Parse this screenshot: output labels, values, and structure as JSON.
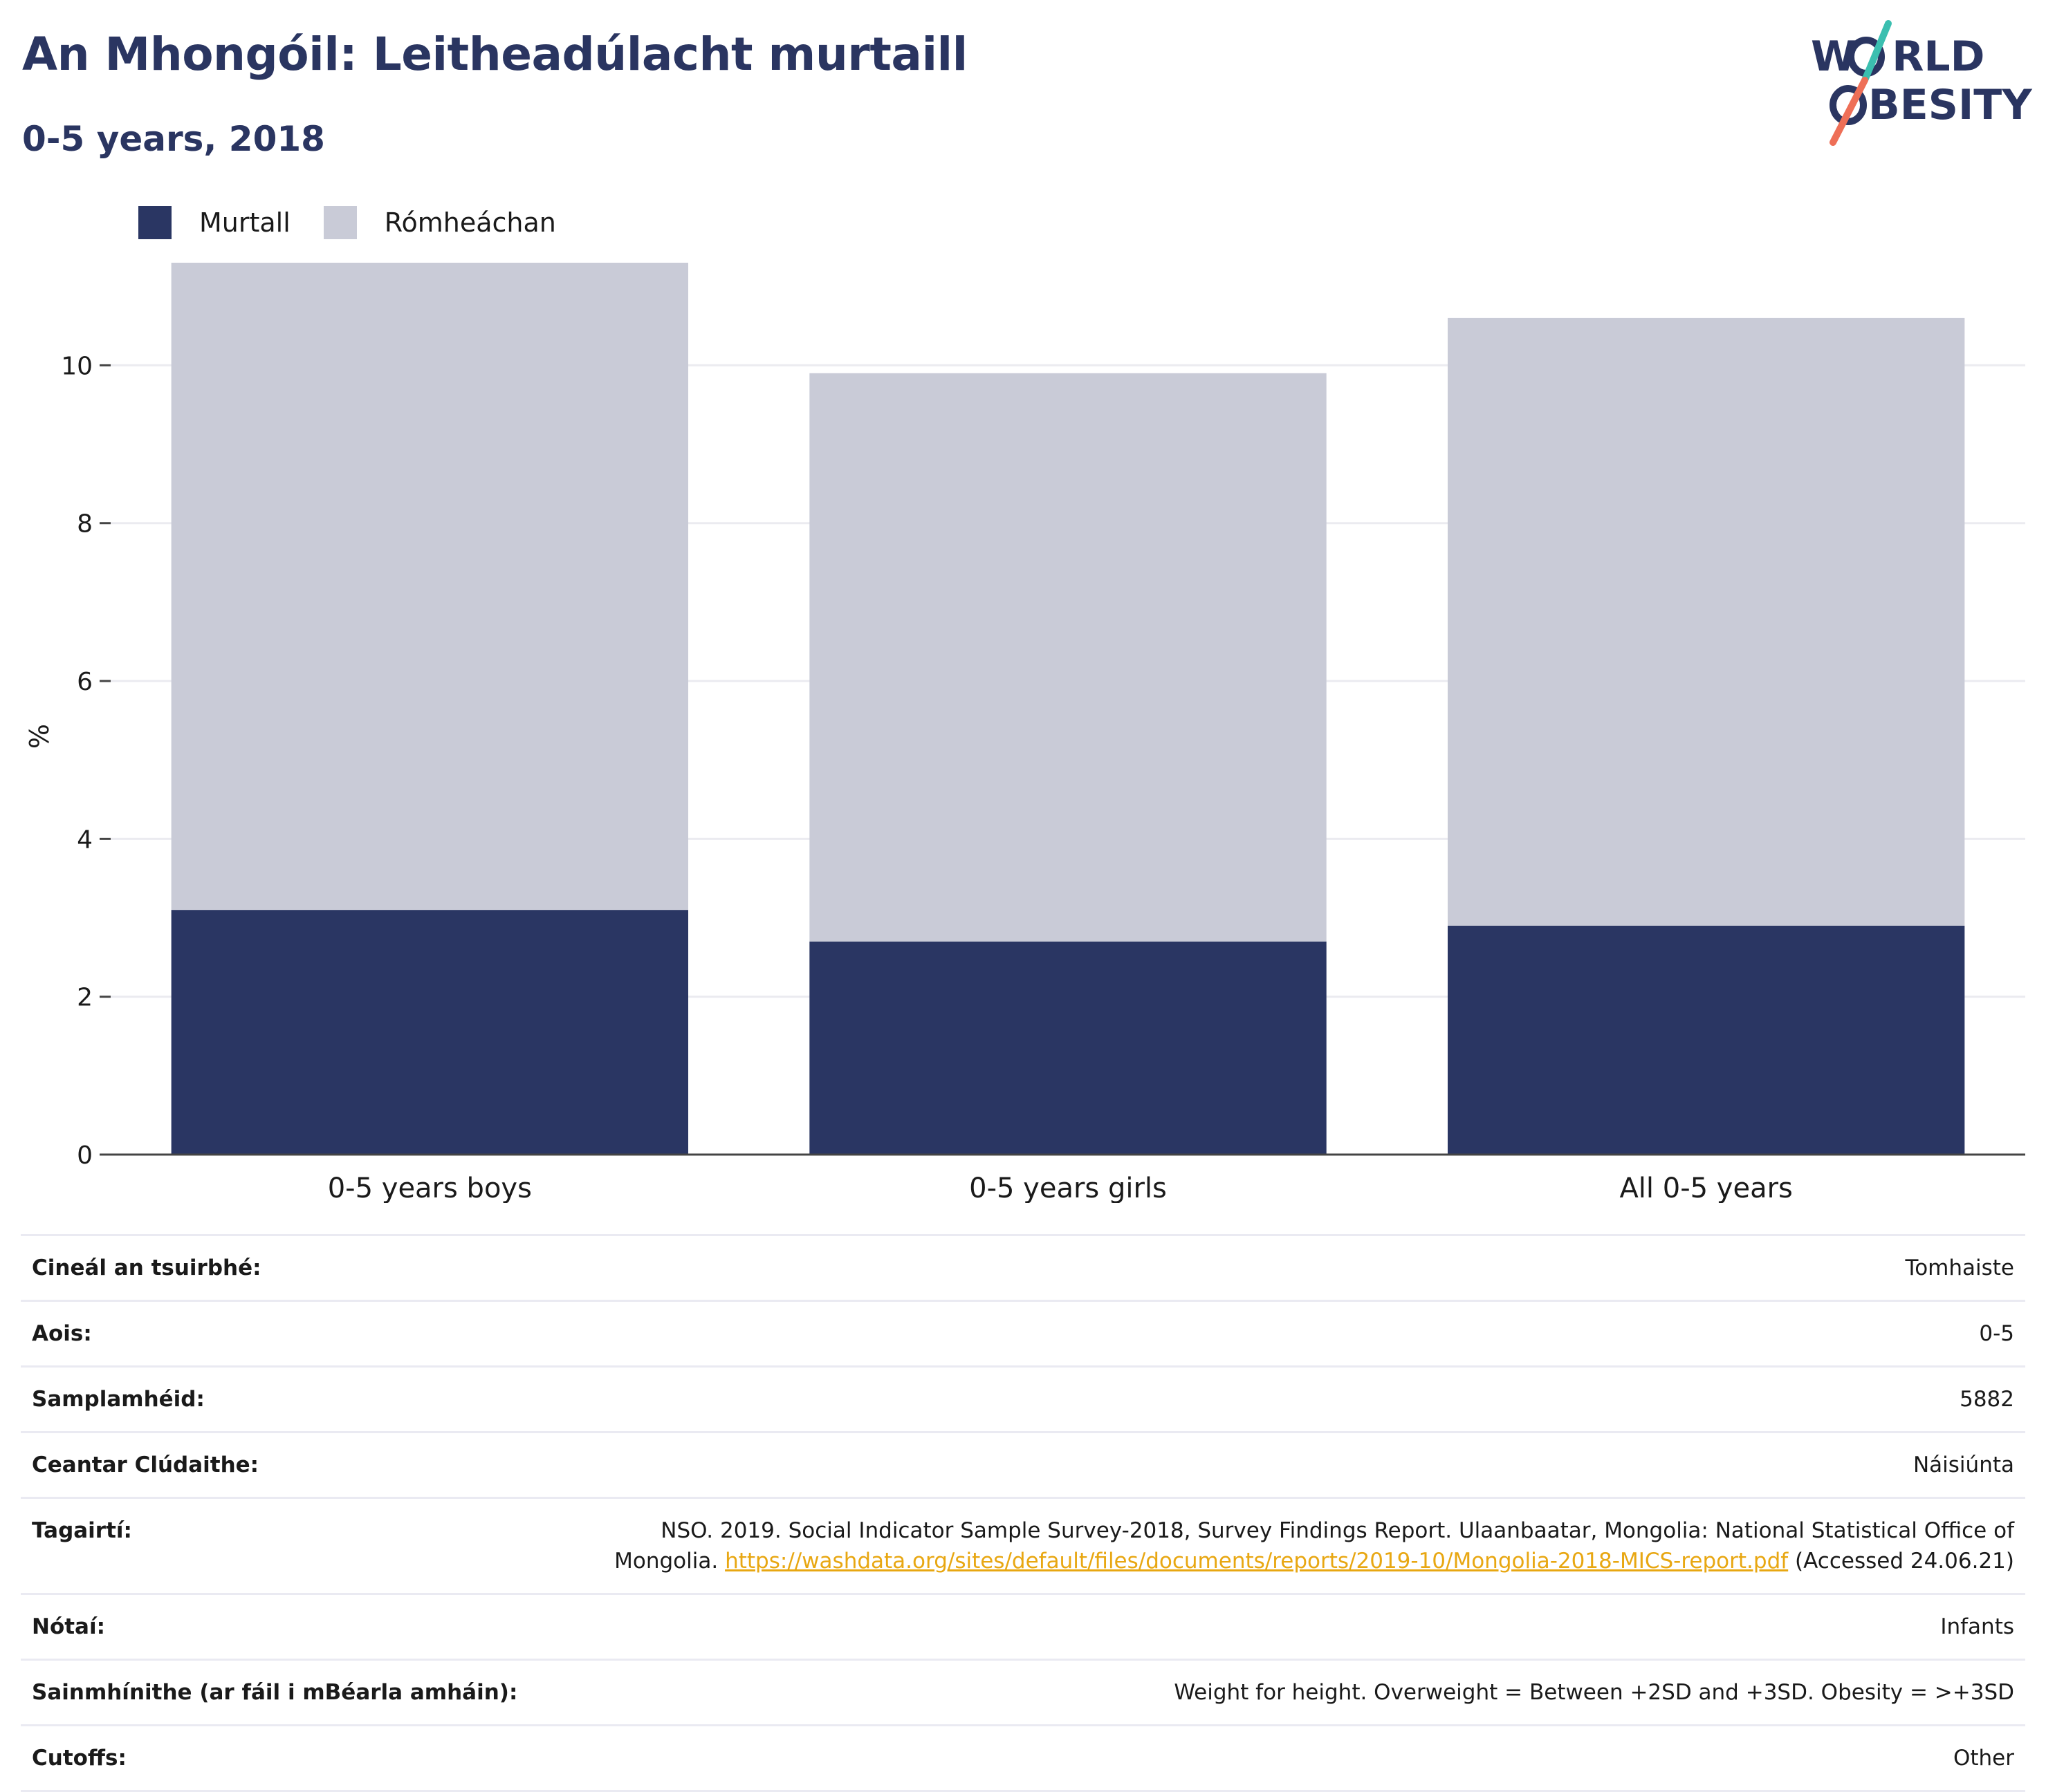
{
  "title": "An Mhongóil: Leitheadúlacht murtaill",
  "subtitle": "0-5 years, 2018",
  "logo": {
    "line1": "WORLD",
    "line2": "OBESITY"
  },
  "colors": {
    "obese": "#2a3663",
    "overweight": "#c9cbd7",
    "title": "#2a3561",
    "link": "#e8a712"
  },
  "legend": [
    {
      "label": "Murtall",
      "color": "#2a3663"
    },
    {
      "label": "Rómheáchan",
      "color": "#c9cbd7"
    }
  ],
  "chart_data": {
    "type": "bar",
    "stacked": true,
    "categories": [
      "0-5 years boys",
      "0-5 years girls",
      "All 0-5 years"
    ],
    "series": [
      {
        "name": "Murtall",
        "values": [
          3.1,
          2.7,
          2.9
        ]
      },
      {
        "name": "Rómheáchan",
        "values": [
          8.2,
          7.2,
          7.7
        ]
      }
    ],
    "ylabel": "%",
    "ylim": [
      0,
      11.3
    ],
    "yticks": [
      0,
      2,
      4,
      6,
      8,
      10
    ],
    "grid": true,
    "legend_position": "top-left"
  },
  "info": [
    {
      "key": "Cineál an tsuirbhé:",
      "value": "Tomhaiste"
    },
    {
      "key": "Aois:",
      "value": "0-5"
    },
    {
      "key": "Samplamhéid:",
      "value": "5882"
    },
    {
      "key": "Ceantar Clúdaithe:",
      "value": "Náisiúnta"
    },
    {
      "key": "Tagairtí:",
      "value": "NSO. 2019. Social Indicator Sample Survey-2018, Survey Findings Report. Ulaanbaatar, Mongolia: National Statistical Office of Mongolia.",
      "link": "https://washdata.org/sites/default/files/documents/reports/2019-10/Mongolia-2018-MICS-report.pdf",
      "suffix": "(Accessed 24.06.21)"
    },
    {
      "key": "Nótaí:",
      "value": "Infants"
    },
    {
      "key": "Sainmhínithe (ar fáil i mBéarla amháin):",
      "value": "Weight for height. Overweight = Between +2SD and +3SD. Obesity = >+3SD"
    },
    {
      "key": "Cutoffs:",
      "value": "Other"
    }
  ]
}
